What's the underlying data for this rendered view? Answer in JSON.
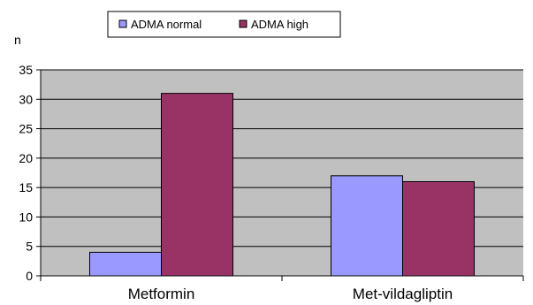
{
  "chart_data": {
    "type": "bar",
    "categories": [
      "Metformin",
      "Met-vildagliptin"
    ],
    "series": [
      {
        "name": "ADMA normal",
        "values": [
          4,
          17
        ],
        "color": "#9999ff"
      },
      {
        "name": "ADMA high",
        "values": [
          31,
          16
        ],
        "color": "#993366"
      }
    ],
    "ylabel": "n",
    "ylim": [
      0,
      35
    ],
    "yticks": [
      0,
      5,
      10,
      15,
      20,
      25,
      30,
      35
    ],
    "grid": true,
    "plot_background": "#c0c0c0",
    "legend_position": "top"
  }
}
